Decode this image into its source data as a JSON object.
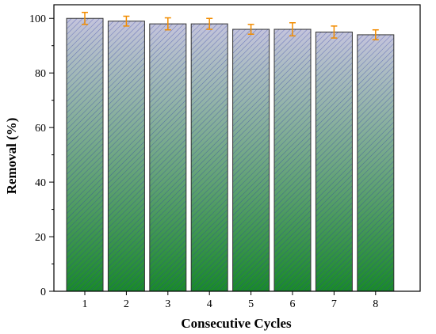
{
  "chart_data": {
    "type": "bar",
    "categories": [
      "1",
      "2",
      "3",
      "4",
      "5",
      "6",
      "7",
      "8"
    ],
    "values": [
      100,
      99,
      98,
      98,
      96,
      96,
      95,
      94
    ],
    "error": [
      2.2,
      1.8,
      2.2,
      2.0,
      1.8,
      2.4,
      2.2,
      1.8
    ],
    "xlabel": "Consecutive Cycles",
    "ylabel": "Removal (%)",
    "ylim": [
      0,
      105
    ],
    "yticks": [
      "0",
      "20",
      "40",
      "60",
      "80",
      "100"
    ],
    "grid": false,
    "colors": {
      "bar_top": "#c4c4dc",
      "bar_bottom": "#1a8a2a",
      "hatch": "#2e3ea8",
      "error_bar": "#f28c00",
      "bar_stroke": "#333333"
    }
  }
}
